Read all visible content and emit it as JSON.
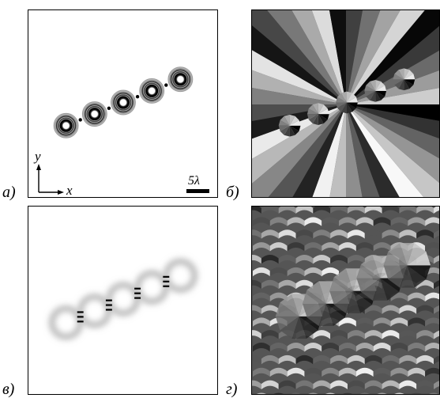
{
  "panels": {
    "a": {
      "label": "а)"
    },
    "b": {
      "label": "б)"
    },
    "v": {
      "label": "в)"
    },
    "g": {
      "label": "г)"
    }
  },
  "axes": {
    "x": "x",
    "y": "y"
  },
  "scale_bar": {
    "text": "5λ"
  },
  "beam_count": 5
}
